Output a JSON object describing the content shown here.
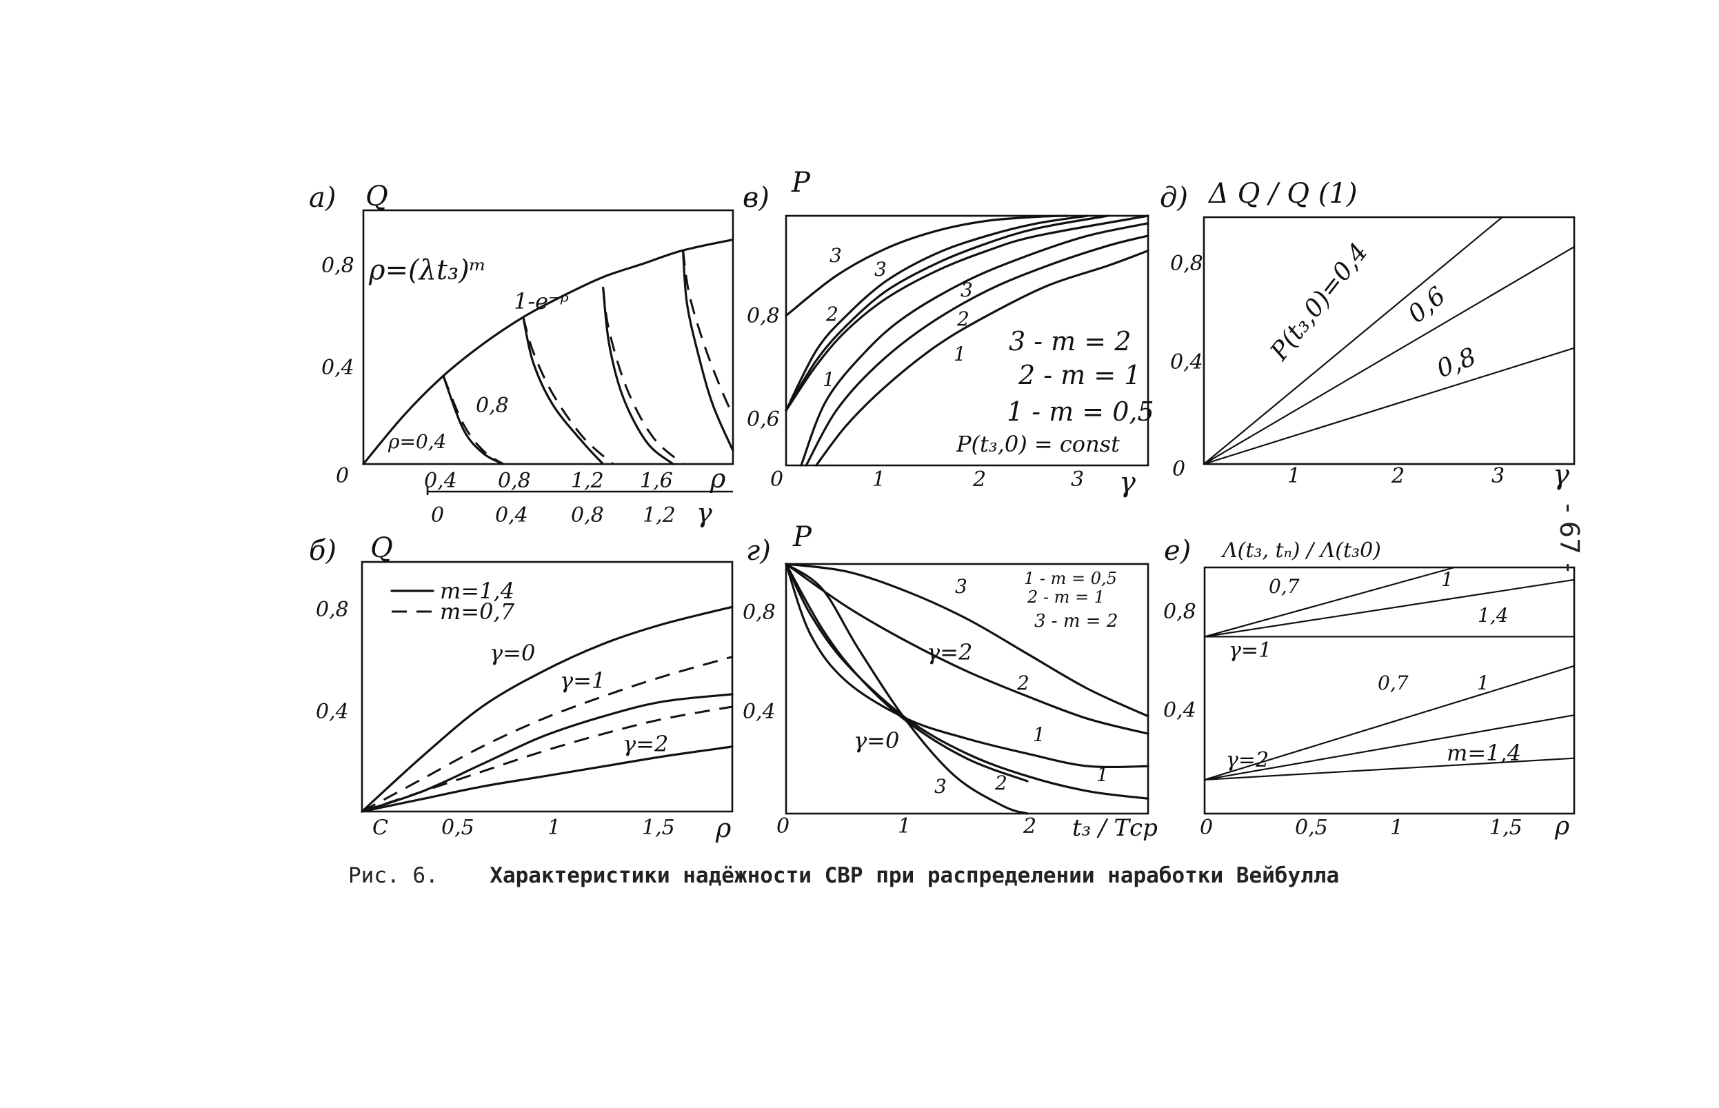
{
  "page_number": "- 67 -",
  "caption": {
    "prefix": "Рис. 6.",
    "title": "Характеристики надёжности СВР при распределении наработки Вейбулла"
  },
  "chart_data": [
    {
      "panel": "а)",
      "type": "line",
      "ylabel": "Q",
      "xlabel": "ρ",
      "xlabel2": "γ",
      "xlim": [
        0,
        1.85
      ],
      "ylim": [
        0,
        0.95
      ],
      "xticks": [
        "0,4",
        "0,8",
        "1,2",
        "1,6"
      ],
      "xticks2": [
        "0",
        "0,4",
        "0,8",
        "1,2"
      ],
      "yticks": [
        "0",
        "0,4",
        "0,8"
      ],
      "annotations": [
        "ρ=(λt₃)ᵐ",
        "1-e⁻ᵖ",
        "ρ=0,4",
        "0,8"
      ],
      "series": [
        {
          "name": "1-e⁻ᵖ",
          "style": "solid",
          "x": [
            0,
            0.2,
            0.4,
            0.6,
            0.8,
            1.0,
            1.2,
            1.4,
            1.6,
            1.85
          ],
          "y": [
            0,
            0.18,
            0.33,
            0.45,
            0.55,
            0.63,
            0.7,
            0.75,
            0.8,
            0.84
          ]
        },
        {
          "style": "solid",
          "x": [
            0.4,
            0.5,
            0.6,
            0.7
          ],
          "y": [
            0.33,
            0.13,
            0.04,
            0.0
          ]
        },
        {
          "style": "dash",
          "x": [
            0.4,
            0.5,
            0.6,
            0.7
          ],
          "y": [
            0.33,
            0.15,
            0.05,
            0.0
          ]
        },
        {
          "style": "solid",
          "x": [
            0.8,
            0.85,
            0.95,
            1.1,
            1.2
          ],
          "y": [
            0.55,
            0.38,
            0.22,
            0.08,
            0.0
          ]
        },
        {
          "style": "dash",
          "x": [
            0.8,
            0.85,
            0.95,
            1.1,
            1.25
          ],
          "y": [
            0.55,
            0.42,
            0.26,
            0.1,
            0.0
          ]
        },
        {
          "style": "solid",
          "x": [
            1.2,
            1.23,
            1.3,
            1.42,
            1.55
          ],
          "y": [
            0.66,
            0.45,
            0.25,
            0.08,
            0.0
          ]
        },
        {
          "style": "dash",
          "x": [
            1.2,
            1.23,
            1.32,
            1.45,
            1.6
          ],
          "y": [
            0.66,
            0.5,
            0.28,
            0.1,
            0.0
          ]
        },
        {
          "style": "solid",
          "x": [
            1.6,
            1.62,
            1.68,
            1.75,
            1.85
          ],
          "y": [
            0.8,
            0.6,
            0.4,
            0.22,
            0.05
          ]
        },
        {
          "style": "dash",
          "x": [
            1.6,
            1.63,
            1.7,
            1.78,
            1.85
          ],
          "y": [
            0.8,
            0.64,
            0.46,
            0.3,
            0.18
          ]
        }
      ]
    },
    {
      "panel": "в)",
      "type": "line",
      "ylabel": "P",
      "xlabel": "γ",
      "xlim": [
        0,
        3.6
      ],
      "ylim": [
        0.5,
        1.0
      ],
      "xticks": [
        "0",
        "1",
        "2",
        "3"
      ],
      "yticks": [
        "0,6",
        "0,8"
      ],
      "legend": [
        "3 - m = 2",
        "2 - m = 1",
        "1 - m = 0,5",
        "P(t₃,0) = const"
      ],
      "series": [
        {
          "name": "3",
          "style": "solid",
          "x": [
            0,
            0.5,
            1,
            1.5,
            2,
            2.5,
            2.8
          ],
          "y": [
            0.8,
            0.88,
            0.935,
            0.97,
            0.99,
            0.998,
            1.0
          ]
        },
        {
          "name": "3",
          "style": "solid",
          "x": [
            0,
            0.3,
            0.6,
            1,
            1.5,
            2,
            2.5,
            3.0
          ],
          "y": [
            0.61,
            0.73,
            0.8,
            0.87,
            0.925,
            0.96,
            0.985,
            1.0
          ]
        },
        {
          "name": "2",
          "style": "solid",
          "x": [
            0,
            0.3,
            0.6,
            1,
            1.5,
            2,
            2.5,
            3.2
          ],
          "y": [
            0.61,
            0.71,
            0.78,
            0.85,
            0.905,
            0.945,
            0.975,
            1.0
          ]
        },
        {
          "name": "1",
          "style": "solid",
          "x": [
            0,
            0.3,
            0.6,
            1,
            1.5,
            2,
            2.5,
            3.6
          ],
          "y": [
            0.61,
            0.7,
            0.77,
            0.835,
            0.89,
            0.93,
            0.96,
            1.0
          ]
        },
        {
          "name": "3",
          "style": "solid",
          "x": [
            0.15,
            0.4,
            0.8,
            1.2,
            1.8,
            2.4,
            3.0,
            3.6
          ],
          "y": [
            0.5,
            0.63,
            0.73,
            0.8,
            0.87,
            0.92,
            0.96,
            0.985
          ]
        },
        {
          "name": "2",
          "style": "solid",
          "x": [
            0.2,
            0.5,
            0.9,
            1.4,
            2.0,
            2.6,
            3.2,
            3.6
          ],
          "y": [
            0.5,
            0.61,
            0.7,
            0.78,
            0.85,
            0.9,
            0.94,
            0.96
          ]
        },
        {
          "name": "1",
          "style": "solid",
          "x": [
            0.3,
            0.6,
            1.0,
            1.5,
            2.0,
            2.6,
            3.2,
            3.6
          ],
          "y": [
            0.5,
            0.58,
            0.66,
            0.74,
            0.8,
            0.86,
            0.9,
            0.93
          ]
        }
      ]
    },
    {
      "panel": "д)",
      "type": "line",
      "ylabel": "Δ Q / Q (1)",
      "xlabel": "γ",
      "xlim": [
        0,
        3.6
      ],
      "ylim": [
        0,
        1.0
      ],
      "xticks": [
        "1",
        "2",
        "3"
      ],
      "yticks": [
        "0",
        "0,4",
        "0,8"
      ],
      "series": [
        {
          "name": "P(t₃,0)=0,4",
          "style": "solid",
          "x": [
            0,
            2.9
          ],
          "y": [
            0,
            1.0
          ]
        },
        {
          "name": "0,6",
          "style": "solid",
          "x": [
            0,
            3.6
          ],
          "y": [
            0,
            0.88
          ]
        },
        {
          "name": "0,8",
          "style": "solid",
          "x": [
            0,
            3.6
          ],
          "y": [
            0,
            0.47
          ]
        }
      ]
    },
    {
      "panel": "б)",
      "type": "line",
      "ylabel": "Q",
      "xlabel": "ρ",
      "xlim": [
        0,
        1.85
      ],
      "ylim": [
        0,
        1.0
      ],
      "xticks": [
        "С",
        "0,5",
        "1",
        "1,5"
      ],
      "yticks": [
        "0,4",
        "0,8"
      ],
      "legend": [
        "m=1,4",
        "m=0,7"
      ],
      "annotations": [
        "γ=0",
        "γ=1",
        "γ=2"
      ],
      "series": [
        {
          "name": "m=1,4",
          "label": "γ=0",
          "style": "solid",
          "x": [
            0,
            0.3,
            0.6,
            0.9,
            1.2,
            1.5,
            1.85
          ],
          "y": [
            0,
            0.22,
            0.42,
            0.56,
            0.67,
            0.75,
            0.82
          ]
        },
        {
          "name": "m=0,7",
          "label": "γ=1",
          "style": "dash",
          "x": [
            0,
            0.3,
            0.6,
            0.9,
            1.2,
            1.5,
            1.85
          ],
          "y": [
            0,
            0.13,
            0.26,
            0.37,
            0.46,
            0.54,
            0.62
          ]
        },
        {
          "name": "m=1,4",
          "label": "γ=1",
          "style": "solid",
          "x": [
            0,
            0.3,
            0.6,
            0.9,
            1.2,
            1.5,
            1.85
          ],
          "y": [
            0,
            0.08,
            0.19,
            0.3,
            0.38,
            0.44,
            0.47
          ]
        },
        {
          "name": "m=0,7",
          "label": "γ=2",
          "style": "dash",
          "x": [
            0,
            0.3,
            0.6,
            0.9,
            1.2,
            1.5,
            1.85
          ],
          "y": [
            0,
            0.08,
            0.16,
            0.24,
            0.31,
            0.37,
            0.42
          ]
        },
        {
          "name": "m=1,4",
          "label": "γ=2",
          "style": "solid",
          "x": [
            0,
            0.3,
            0.6,
            0.9,
            1.2,
            1.5,
            1.85
          ],
          "y": [
            0,
            0.05,
            0.1,
            0.14,
            0.18,
            0.22,
            0.26
          ]
        }
      ]
    },
    {
      "panel": "г)",
      "type": "line",
      "ylabel": "P",
      "xlabel": "t₃ / Tср",
      "xlim": [
        0,
        3.0
      ],
      "ylim": [
        0,
        1.0
      ],
      "xticks": [
        "0",
        "1",
        "2"
      ],
      "yticks": [
        "0,4",
        "0,8"
      ],
      "legend": [
        "1 - m = 0,5",
        "2 - m = 1",
        "3 - m = 2"
      ],
      "annotations": [
        "γ=2",
        "γ=0"
      ],
      "series": [
        {
          "name": "3",
          "label": "γ=2",
          "style": "solid",
          "x": [
            0,
            0.5,
            1.0,
            1.5,
            2.0,
            2.5,
            3.0
          ],
          "y": [
            1.0,
            0.97,
            0.89,
            0.78,
            0.64,
            0.5,
            0.39
          ]
        },
        {
          "name": "2",
          "label": "γ=2",
          "style": "solid",
          "x": [
            0,
            0.5,
            1.0,
            1.5,
            2.0,
            2.5,
            3.0
          ],
          "y": [
            1.0,
            0.83,
            0.69,
            0.57,
            0.47,
            0.38,
            0.32
          ]
        },
        {
          "name": "1",
          "label": "γ=0",
          "style": "solid",
          "x": [
            0,
            0.2,
            0.5,
            1.0,
            1.5,
            2.0,
            2.5,
            3.0
          ],
          "y": [
            1.0,
            0.72,
            0.53,
            0.38,
            0.3,
            0.24,
            0.19,
            0.19
          ]
        },
        {
          "name": "1",
          "label": "γ=2",
          "style": "solid",
          "x": [
            0,
            0.2,
            0.5,
            1.0,
            1.5,
            2.0,
            2.5,
            3.0
          ],
          "y": [
            1.0,
            0.8,
            0.6,
            0.38,
            0.24,
            0.15,
            0.09,
            0.06
          ]
        },
        {
          "name": "2",
          "label": "γ=0",
          "style": "solid",
          "x": [
            0,
            0.3,
            0.6,
            1.0,
            1.5,
            2.0
          ],
          "y": [
            1.0,
            0.74,
            0.55,
            0.37,
            0.22,
            0.13
          ]
        },
        {
          "name": "3",
          "label": "γ=0",
          "style": "solid",
          "x": [
            0,
            0.3,
            0.6,
            1.0,
            1.4,
            1.8,
            2.0
          ],
          "y": [
            1.0,
            0.9,
            0.66,
            0.37,
            0.15,
            0.03,
            0.0
          ]
        }
      ]
    },
    {
      "panel": "е)",
      "type": "line",
      "ylabel": "Λ(t₃, tₙ) / Λ(t₃0)",
      "xlabel": "ρ",
      "xlim": [
        0,
        1.85
      ],
      "ylim": [
        0.2,
        1.0
      ],
      "xticks": [
        "0",
        "0,5",
        "1",
        "1,5"
      ],
      "yticks": [
        "0,4",
        "0,8"
      ],
      "annotations": [
        "γ=1",
        "γ=2",
        "m=1,4"
      ],
      "series": [
        {
          "name": "0,7",
          "label": "γ=1",
          "style": "solid",
          "x": [
            0,
            1.25
          ],
          "y": [
            0.775,
            1.0
          ]
        },
        {
          "name": "1",
          "label": "γ=1",
          "style": "solid",
          "x": [
            0,
            1.85
          ],
          "y": [
            0.775,
            0.96
          ]
        },
        {
          "name": "1,4",
          "label": "γ=1",
          "style": "solid",
          "x": [
            0,
            1.85
          ],
          "y": [
            0.775,
            0.775
          ]
        },
        {
          "name": "0,7",
          "label": "γ=2",
          "style": "solid",
          "x": [
            0,
            1.85
          ],
          "y": [
            0.31,
            0.68
          ]
        },
        {
          "name": "1",
          "label": "γ=2",
          "style": "solid",
          "x": [
            0,
            1.85
          ],
          "y": [
            0.31,
            0.52
          ]
        },
        {
          "name": "1,4",
          "label": "γ=2",
          "style": "solid",
          "x": [
            0,
            1.85
          ],
          "y": [
            0.31,
            0.38
          ]
        }
      ]
    }
  ]
}
